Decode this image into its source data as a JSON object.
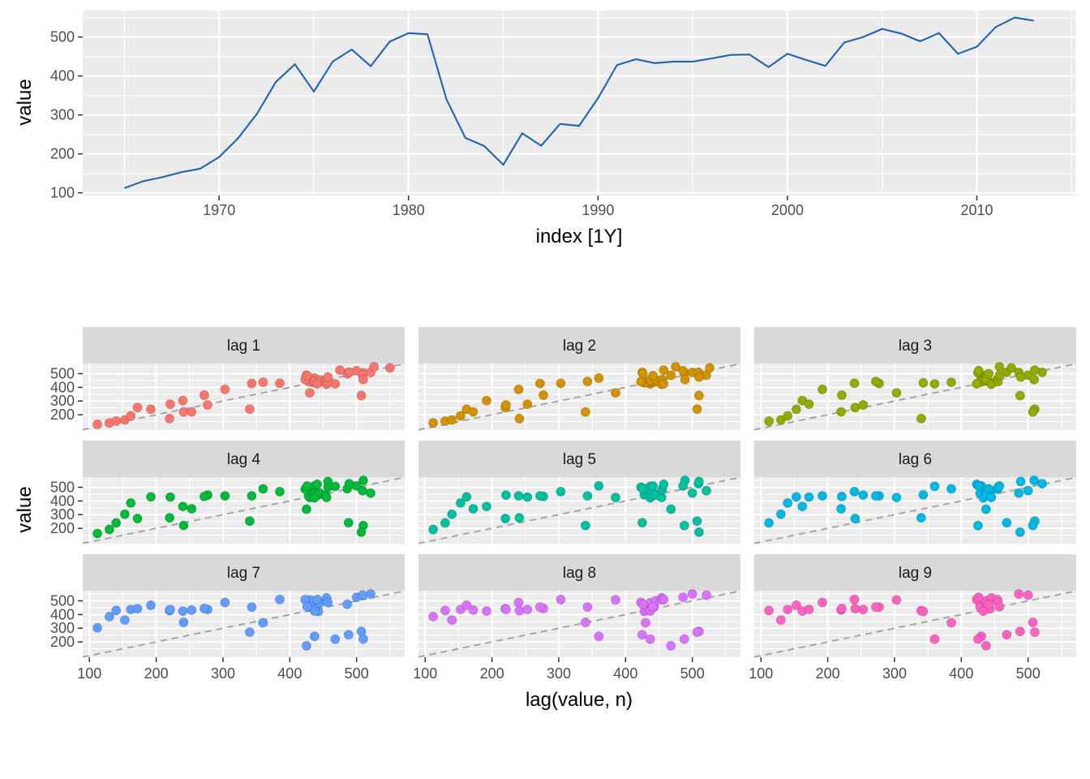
{
  "chart_data": [
    {
      "type": "line",
      "xlabel": "index [1Y]",
      "ylabel": "value",
      "xlim": [
        1962.8,
        2015.2
      ],
      "ylim": [
        93,
        568
      ],
      "x_ticks": [
        1970,
        1980,
        1990,
        2000,
        2010
      ],
      "y_ticks": [
        100,
        200,
        300,
        400,
        500
      ],
      "grid": true,
      "series": [
        {
          "color": "#1f65b0",
          "x": [
            1965,
            1966,
            1967,
            1968,
            1969,
            1970,
            1971,
            1972,
            1973,
            1974,
            1975,
            1976,
            1977,
            1978,
            1979,
            1980,
            1981,
            1982,
            1983,
            1984,
            1985,
            1986,
            1987,
            1988,
            1989,
            1990,
            1991,
            1992,
            1993,
            1994,
            1995,
            1996,
            1997,
            1998,
            1999,
            2000,
            2001,
            2002,
            2003,
            2004,
            2005,
            2006,
            2007,
            2008,
            2009,
            2010,
            2011,
            2012,
            2013
          ],
          "values": [
            112,
            130,
            140,
            153,
            162,
            192,
            240,
            303,
            385,
            430,
            360,
            437,
            468,
            425,
            488,
            510,
            507,
            340,
            241,
            220,
            172,
            253,
            221,
            277,
            272,
            343,
            428,
            443,
            433,
            437,
            437,
            445,
            454,
            455,
            423,
            457,
            441,
            426,
            486,
            500,
            521,
            509,
            489,
            510,
            457,
            475,
            526,
            550,
            542
          ]
        }
      ]
    },
    {
      "type": "scatter",
      "facets": [
        "lag 1",
        "lag 2",
        "lag 3",
        "lag 4",
        "lag 5",
        "lag 6",
        "lag 7",
        "lag 8",
        "lag 9"
      ],
      "facet_colors": [
        "#f8766d",
        "#d39200",
        "#93aa00",
        "#00ba38",
        "#00c19f",
        "#00b9e3",
        "#619cff",
        "#db72fb",
        "#ff61c3"
      ],
      "xlabel": "lag(value, n)",
      "ylabel": "value",
      "xlim": [
        90,
        572
      ],
      "ylim": [
        88,
        574
      ],
      "x_ticks": [
        100,
        200,
        300,
        400,
        500
      ],
      "y_ticks": [
        200,
        300,
        400,
        500
      ],
      "reference_line": "y = x (dashed)",
      "grid": true
    }
  ]
}
